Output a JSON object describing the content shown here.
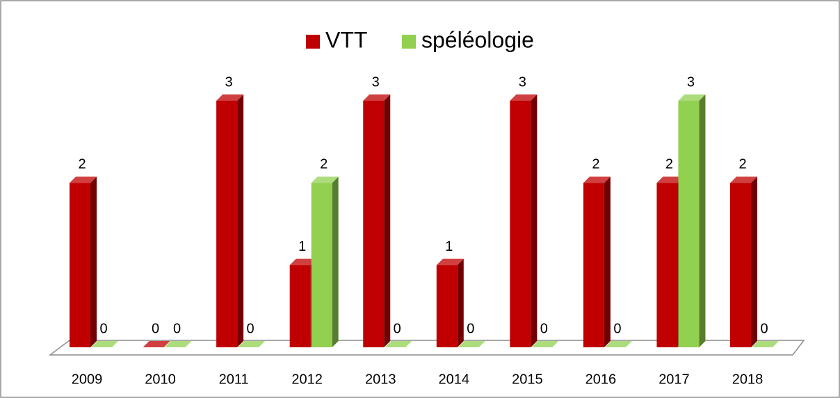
{
  "chart_data": {
    "type": "bar3d",
    "categories": [
      "2009",
      "2010",
      "2011",
      "2012",
      "2013",
      "2014",
      "2015",
      "2016",
      "2017",
      "2018"
    ],
    "series": [
      {
        "name": "VTT",
        "color": "#c00000",
        "values": [
          2,
          0,
          3,
          1,
          3,
          1,
          3,
          2,
          2,
          2
        ]
      },
      {
        "name": "spéléologie",
        "color": "#92d050",
        "values": [
          0,
          0,
          0,
          2,
          0,
          0,
          0,
          0,
          3,
          0
        ]
      }
    ],
    "legend": "top"
  }
}
